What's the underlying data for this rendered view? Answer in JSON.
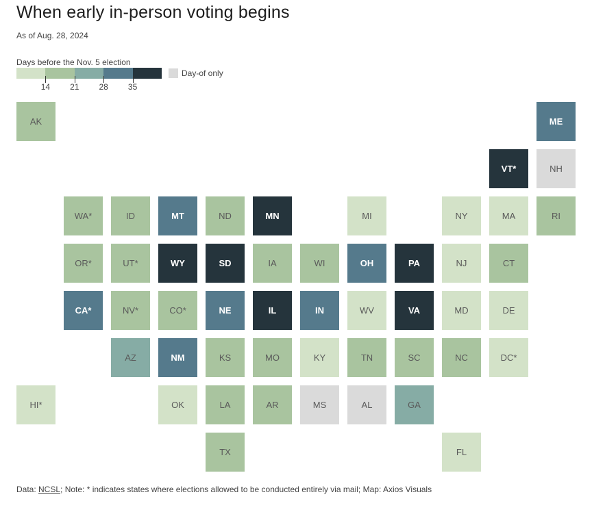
{
  "title": "When early in-person voting begins",
  "subtitle": "As of Aug. 28, 2024",
  "legend": {
    "title": "Days before the Nov. 5 election",
    "colors": [
      "#d3e2c8",
      "#a9c49f",
      "#86aca5",
      "#557a8c",
      "#25343c"
    ],
    "ticks": [
      "14",
      "21",
      "28",
      "35"
    ],
    "day_of_label": "Day-of only",
    "day_of_color": "#dadada"
  },
  "states": [
    {
      "abbr": "AK",
      "label": "AK",
      "bin": 1
    },
    {
      "abbr": "ME",
      "label": "ME",
      "bin": 3
    },
    {
      "abbr": "VT",
      "label": "VT*",
      "bin": 4
    },
    {
      "abbr": "NH",
      "label": "NH",
      "bin": -1
    },
    {
      "abbr": "WA",
      "label": "WA*",
      "bin": 1
    },
    {
      "abbr": "ID",
      "label": "ID",
      "bin": 1
    },
    {
      "abbr": "MT",
      "label": "MT",
      "bin": 3
    },
    {
      "abbr": "ND",
      "label": "ND",
      "bin": 1
    },
    {
      "abbr": "MN",
      "label": "MN",
      "bin": 4
    },
    {
      "abbr": "MI",
      "label": "MI",
      "bin": 0
    },
    {
      "abbr": "NY",
      "label": "NY",
      "bin": 0
    },
    {
      "abbr": "MA",
      "label": "MA",
      "bin": 0
    },
    {
      "abbr": "RI",
      "label": "RI",
      "bin": 1
    },
    {
      "abbr": "OR",
      "label": "OR*",
      "bin": 1
    },
    {
      "abbr": "UT",
      "label": "UT*",
      "bin": 1
    },
    {
      "abbr": "WY",
      "label": "WY",
      "bin": 4
    },
    {
      "abbr": "SD",
      "label": "SD",
      "bin": 4
    },
    {
      "abbr": "IA",
      "label": "IA",
      "bin": 1
    },
    {
      "abbr": "WI",
      "label": "WI",
      "bin": 1
    },
    {
      "abbr": "OH",
      "label": "OH",
      "bin": 3
    },
    {
      "abbr": "PA",
      "label": "PA",
      "bin": 4
    },
    {
      "abbr": "NJ",
      "label": "NJ",
      "bin": 0
    },
    {
      "abbr": "CT",
      "label": "CT",
      "bin": 1
    },
    {
      "abbr": "CA",
      "label": "CA*",
      "bin": 3
    },
    {
      "abbr": "NV",
      "label": "NV*",
      "bin": 1
    },
    {
      "abbr": "CO",
      "label": "CO*",
      "bin": 1
    },
    {
      "abbr": "NE",
      "label": "NE",
      "bin": 3
    },
    {
      "abbr": "IL",
      "label": "IL",
      "bin": 4
    },
    {
      "abbr": "IN",
      "label": "IN",
      "bin": 3
    },
    {
      "abbr": "WV",
      "label": "WV",
      "bin": 0
    },
    {
      "abbr": "VA",
      "label": "VA",
      "bin": 4
    },
    {
      "abbr": "MD",
      "label": "MD",
      "bin": 0
    },
    {
      "abbr": "DE",
      "label": "DE",
      "bin": 0
    },
    {
      "abbr": "AZ",
      "label": "AZ",
      "bin": 2
    },
    {
      "abbr": "NM",
      "label": "NM",
      "bin": 3
    },
    {
      "abbr": "KS",
      "label": "KS",
      "bin": 1
    },
    {
      "abbr": "MO",
      "label": "MO",
      "bin": 1
    },
    {
      "abbr": "KY",
      "label": "KY",
      "bin": 0
    },
    {
      "abbr": "TN",
      "label": "TN",
      "bin": 1
    },
    {
      "abbr": "SC",
      "label": "SC",
      "bin": 1
    },
    {
      "abbr": "NC",
      "label": "NC",
      "bin": 1
    },
    {
      "abbr": "DC",
      "label": "DC*",
      "bin": 0
    },
    {
      "abbr": "HI",
      "label": "HI*",
      "bin": 0
    },
    {
      "abbr": "OK",
      "label": "OK",
      "bin": 0
    },
    {
      "abbr": "LA",
      "label": "LA",
      "bin": 1
    },
    {
      "abbr": "AR",
      "label": "AR",
      "bin": 1
    },
    {
      "abbr": "MS",
      "label": "MS",
      "bin": -1
    },
    {
      "abbr": "AL",
      "label": "AL",
      "bin": -1
    },
    {
      "abbr": "GA",
      "label": "GA",
      "bin": 2
    },
    {
      "abbr": "TX",
      "label": "TX",
      "bin": 1
    },
    {
      "abbr": "FL",
      "label": "FL",
      "bin": 0
    }
  ],
  "footer": {
    "prefix": "Data: ",
    "source_link": "NCSL",
    "rest": "; Note: * indicates states where elections allowed to be conducted entirely via mail; Map: Axios Visuals"
  }
}
